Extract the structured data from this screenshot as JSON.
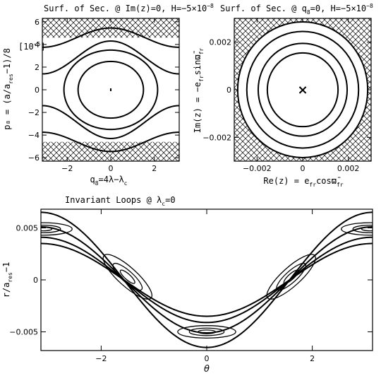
{
  "chart_data": [
    {
      "type": "line",
      "panel": "top-left",
      "title": "Surf. of Sec. @ Im(z)=0, H=−5×10⁻⁸",
      "xlabel": "q₈=4λ−λc",
      "ylabel": "p₈ = (a/ares−1)/8",
      "ylabel_unit": "[10⁻⁵]",
      "xlim": [
        -3.1416,
        3.1416
      ],
      "ylim": [
        -6.3,
        6.3
      ],
      "xticks": [
        -2,
        0,
        2
      ],
      "yticks": [
        -6,
        -4,
        -2,
        0,
        2,
        4,
        6
      ],
      "hatched_regions": [
        {
          "y_from": 4.6,
          "y_to": 6.3
        },
        {
          "y_from": -6.3,
          "y_to": -4.6
        }
      ],
      "series": [
        {
          "values": {
            "kind": "closed",
            "center": [
              0,
              0
            ],
            "semi_axes": [
              1.5,
              2.5
            ]
          }
        },
        {
          "values": {
            "kind": "closed",
            "center": [
              0,
              0
            ],
            "semi_axes": [
              2.15,
              3.5
            ]
          }
        },
        {
          "values": {
            "kind": "open",
            "mean": 2.85,
            "amplitude": 1.45
          }
        },
        {
          "values": {
            "kind": "open",
            "mean": 4.6,
            "amplitude": 0.85
          }
        },
        {
          "values": {
            "kind": "open",
            "mean": -2.85,
            "amplitude": -1.45
          }
        },
        {
          "values": {
            "kind": "open",
            "mean": -4.6,
            "amplitude": -0.85
          }
        }
      ],
      "center_point": [
        0,
        0
      ]
    },
    {
      "type": "line",
      "panel": "top-right",
      "title": "Surf. of Sec. @ q₈=0, H=−5×10⁻⁸",
      "xlabel": "Re(z) = efr cos ϖ̄fr",
      "ylabel": "Im(z) = −efr sin ϖ̄fr",
      "xlim": [
        -0.003,
        0.003
      ],
      "ylim": [
        -0.003,
        0.003
      ],
      "xticks": [
        -0.002,
        0,
        0.002
      ],
      "yticks": [
        -0.002,
        0,
        0.002
      ],
      "xtick_labels": [
        "−0.002",
        "0",
        "0.002"
      ],
      "ytick_labels": [
        "−0.002",
        "0",
        "0.002"
      ],
      "hatched_outside_radius": 0.00285,
      "series": [
        {
          "values": {
            "kind": "circle",
            "radius": 0.00155
          }
        },
        {
          "values": {
            "kind": "circle",
            "radius": 0.00195
          }
        },
        {
          "values": {
            "kind": "circle",
            "radius": 0.00245
          }
        },
        {
          "values": {
            "kind": "circle",
            "radius": 0.00285
          }
        }
      ],
      "center_marker": "×"
    },
    {
      "type": "line",
      "panel": "bottom",
      "title": "Invariant Loops @ λc=0",
      "xlabel": "θ",
      "ylabel": "r/ares−1",
      "xlim": [
        -3.1416,
        3.1416
      ],
      "ylim": [
        -0.0068,
        0.0068
      ],
      "xticks": [
        -2,
        0,
        2
      ],
      "yticks": [
        -0.005,
        0,
        0.005
      ],
      "xtick_labels": [
        "−2",
        "0",
        "2"
      ],
      "ytick_labels": [
        "−0.005",
        "0",
        "0.005"
      ],
      "series": [
        {
          "values": {
            "kind": "cosine",
            "mean": 0.0,
            "amplitude": 0.0065
          }
        },
        {
          "values": {
            "kind": "cosine",
            "mean": 0.0,
            "amplitude": 0.0051
          }
        },
        {
          "values": {
            "kind": "cosine",
            "mean": 0.0,
            "amplitude": 0.0041
          }
        },
        {
          "values": {
            "kind": "cosine",
            "mean": 0.0,
            "amplitude": 0.0035
          }
        }
      ],
      "islands": [
        {
          "theta": -3.1,
          "r": 0.0049,
          "half_width_theta": 0.55,
          "half_height": 0.0006
        },
        {
          "theta": 3.1,
          "r": 0.0049,
          "half_width_theta": 0.55,
          "half_height": 0.0006
        },
        {
          "theta": 0.0,
          "r": -0.005,
          "half_width_theta": 0.55,
          "half_height": 0.0006
        },
        {
          "theta": -1.5,
          "r": 0.0003,
          "half_width_theta": 0.6,
          "half_height": 0.0009
        },
        {
          "theta": 1.6,
          "r": 0.0003,
          "half_width_theta": 0.6,
          "half_height": 0.0009
        }
      ]
    }
  ],
  "labels": {
    "tl_title": "Surf. of Sec. @ Im(z)=0, H=−5×10",
    "tl_title_exp": "−8",
    "tl_xlabel_a": "q",
    "tl_xlabel_sub": "8",
    "tl_xlabel_b": "=4λ−λ",
    "tl_xlabel_sub2": "c",
    "tl_ylabel": "p₈ = (a/a",
    "tl_ylabel_sub": "res",
    "tl_ylabel_b": "−1)/8",
    "tl_unit": "[10",
    "tl_unit_exp": "−5",
    "tl_unit_end": "]",
    "tr_title_a": "Surf. of Sec. @ q",
    "tr_title_sub": "8",
    "tr_title_b": "=0, H=−5×10",
    "tr_title_exp": "−8",
    "tr_xlabel": "Re(z) = e",
    "tr_xlabel_sub": "fr",
    "tr_xlabel_b": "cosϖ̄",
    "tr_xlabel_sub2": "fr",
    "tr_ylabel": "Im(z) = −e",
    "tr_ylabel_sub": "fr",
    "tr_ylabel_b": "sinϖ̄",
    "tr_ylabel_sub2": "fr",
    "b_title": "Invariant Loops @ λ",
    "b_title_sub": "c",
    "b_title_end": "=0",
    "b_xlabel": "θ",
    "b_ylabel": "r/a",
    "b_ylabel_sub": "res",
    "b_ylabel_end": "−1",
    "tl_xticks": [
      "−2",
      "0",
      "2"
    ],
    "tl_yticks": [
      "−6",
      "−4",
      "−2",
      "0",
      "2",
      "4",
      "6"
    ]
  }
}
